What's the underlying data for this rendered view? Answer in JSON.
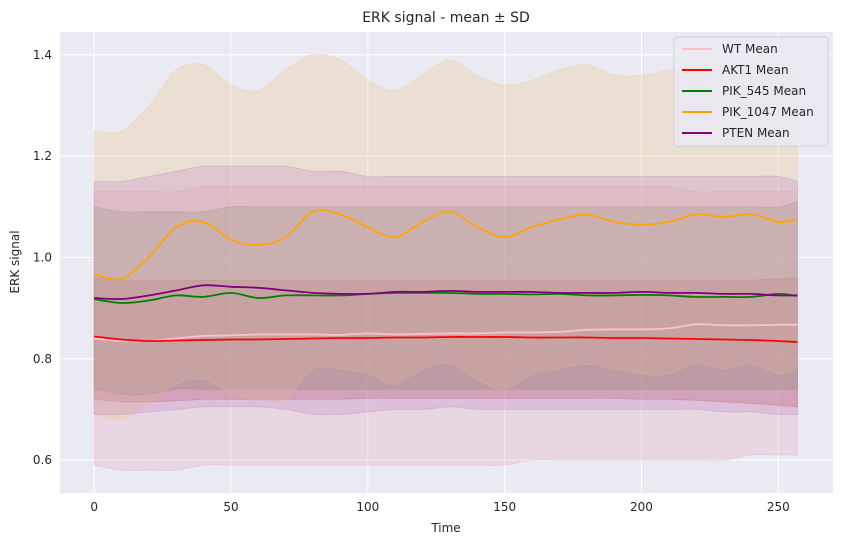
{
  "chart_data": {
    "type": "line",
    "title": "ERK signal - mean ± SD",
    "xlabel": "Time",
    "ylabel": "ERK signal",
    "xlim": [
      -12.5,
      270
    ],
    "ylim": [
      0.535,
      1.445
    ],
    "x_ticks": [
      0,
      50,
      100,
      150,
      200,
      250
    ],
    "y_ticks": [
      0.6,
      0.8,
      1.0,
      1.2,
      1.4
    ],
    "x_tick_labels": [
      "0",
      "50",
      "100",
      "150",
      "200",
      "250"
    ],
    "y_tick_labels": [
      "0.6",
      "0.8",
      "1.0",
      "1.2",
      "1.4"
    ],
    "grid": true,
    "legend_position": "top-right",
    "band": "mean ± SD",
    "x": [
      0,
      10,
      20,
      30,
      40,
      50,
      60,
      70,
      80,
      90,
      100,
      110,
      120,
      130,
      140,
      150,
      160,
      170,
      180,
      190,
      200,
      210,
      220,
      230,
      240,
      250,
      257
    ],
    "series": [
      {
        "name": "WT Mean",
        "color": "#ffc0cb",
        "band_color": "#e6a8c0",
        "mean": [
          0.84,
          0.835,
          0.835,
          0.84,
          0.845,
          0.846,
          0.848,
          0.848,
          0.848,
          0.847,
          0.85,
          0.848,
          0.849,
          0.85,
          0.85,
          0.852,
          0.852,
          0.853,
          0.857,
          0.858,
          0.858,
          0.86,
          0.868,
          0.866,
          0.866,
          0.867,
          0.867
        ],
        "upper": [
          1.13,
          1.13,
          1.13,
          1.13,
          1.14,
          1.14,
          1.14,
          1.14,
          1.14,
          1.14,
          1.14,
          1.14,
          1.14,
          1.14,
          1.14,
          1.14,
          1.14,
          1.14,
          1.14,
          1.14,
          1.14,
          1.14,
          1.13,
          1.13,
          1.13,
          1.13,
          1.13
        ],
        "lower": [
          0.59,
          0.58,
          0.58,
          0.58,
          0.59,
          0.59,
          0.59,
          0.59,
          0.59,
          0.59,
          0.59,
          0.59,
          0.59,
          0.59,
          0.59,
          0.59,
          0.6,
          0.6,
          0.6,
          0.6,
          0.6,
          0.6,
          0.6,
          0.6,
          0.61,
          0.61,
          0.61
        ]
      },
      {
        "name": "AKT1 Mean",
        "color": "#ff0000",
        "band_color": "#c0504d",
        "mean": [
          0.844,
          0.838,
          0.835,
          0.836,
          0.837,
          0.838,
          0.838,
          0.839,
          0.84,
          0.841,
          0.841,
          0.842,
          0.842,
          0.843,
          0.843,
          0.843,
          0.842,
          0.842,
          0.842,
          0.841,
          0.841,
          0.84,
          0.839,
          0.838,
          0.837,
          0.835,
          0.833
        ],
        "upper": [
          0.96,
          0.955,
          0.955,
          0.955,
          0.955,
          0.955,
          0.955,
          0.955,
          0.955,
          0.955,
          0.955,
          0.955,
          0.955,
          0.955,
          0.955,
          0.955,
          0.955,
          0.955,
          0.955,
          0.955,
          0.955,
          0.955,
          0.955,
          0.955,
          0.955,
          0.958,
          0.96
        ],
        "lower": [
          0.72,
          0.715,
          0.715,
          0.717,
          0.72,
          0.72,
          0.72,
          0.72,
          0.72,
          0.72,
          0.722,
          0.722,
          0.722,
          0.722,
          0.722,
          0.722,
          0.722,
          0.722,
          0.722,
          0.722,
          0.72,
          0.72,
          0.718,
          0.715,
          0.712,
          0.708,
          0.705
        ]
      },
      {
        "name": "PIK_545 Mean",
        "color": "#008000",
        "band_color": "#6e8b5a",
        "mean": [
          0.918,
          0.91,
          0.915,
          0.925,
          0.922,
          0.93,
          0.92,
          0.925,
          0.925,
          0.925,
          0.928,
          0.93,
          0.93,
          0.93,
          0.928,
          0.928,
          0.927,
          0.928,
          0.925,
          0.925,
          0.926,
          0.925,
          0.922,
          0.922,
          0.922,
          0.928,
          0.924
        ],
        "upper": [
          1.1,
          1.09,
          1.09,
          1.09,
          1.09,
          1.1,
          1.1,
          1.1,
          1.1,
          1.1,
          1.1,
          1.1,
          1.1,
          1.1,
          1.1,
          1.1,
          1.1,
          1.1,
          1.1,
          1.1,
          1.1,
          1.1,
          1.1,
          1.1,
          1.1,
          1.1,
          1.11
        ],
        "lower": [
          0.74,
          0.73,
          0.73,
          0.74,
          0.74,
          0.74,
          0.74,
          0.74,
          0.74,
          0.74,
          0.74,
          0.74,
          0.74,
          0.74,
          0.74,
          0.74,
          0.74,
          0.74,
          0.74,
          0.74,
          0.74,
          0.74,
          0.74,
          0.74,
          0.74,
          0.74,
          0.74
        ]
      },
      {
        "name": "PIK_1047 Mean",
        "color": "#ffa500",
        "band_color": "#f0c890",
        "mean": [
          0.967,
          0.958,
          1.0,
          1.06,
          1.07,
          1.035,
          1.025,
          1.04,
          1.09,
          1.085,
          1.06,
          1.04,
          1.07,
          1.09,
          1.06,
          1.04,
          1.06,
          1.075,
          1.085,
          1.07,
          1.065,
          1.07,
          1.085,
          1.08,
          1.085,
          1.07,
          1.075
        ],
        "upper": [
          1.25,
          1.25,
          1.3,
          1.37,
          1.38,
          1.34,
          1.33,
          1.37,
          1.4,
          1.39,
          1.35,
          1.33,
          1.36,
          1.39,
          1.36,
          1.34,
          1.35,
          1.37,
          1.38,
          1.36,
          1.36,
          1.37,
          1.38,
          1.38,
          1.38,
          1.37,
          1.37
        ],
        "lower": [
          0.69,
          0.68,
          0.71,
          0.75,
          0.76,
          0.73,
          0.72,
          0.72,
          0.78,
          0.78,
          0.77,
          0.75,
          0.78,
          0.79,
          0.76,
          0.74,
          0.77,
          0.78,
          0.79,
          0.78,
          0.77,
          0.77,
          0.79,
          0.78,
          0.79,
          0.77,
          0.78
        ]
      },
      {
        "name": "PTEN Mean",
        "color": "#800080",
        "band_color": "#c08ac0",
        "mean": [
          0.92,
          0.918,
          0.925,
          0.935,
          0.945,
          0.942,
          0.94,
          0.935,
          0.93,
          0.928,
          0.928,
          0.932,
          0.932,
          0.934,
          0.932,
          0.932,
          0.932,
          0.93,
          0.93,
          0.93,
          0.932,
          0.93,
          0.93,
          0.928,
          0.928,
          0.925,
          0.925
        ],
        "upper": [
          1.15,
          1.15,
          1.16,
          1.17,
          1.18,
          1.18,
          1.18,
          1.18,
          1.17,
          1.17,
          1.16,
          1.16,
          1.16,
          1.16,
          1.16,
          1.16,
          1.16,
          1.16,
          1.16,
          1.16,
          1.16,
          1.16,
          1.16,
          1.16,
          1.16,
          1.16,
          1.15
        ],
        "lower": [
          0.69,
          0.69,
          0.695,
          0.7,
          0.705,
          0.705,
          0.705,
          0.7,
          0.69,
          0.69,
          0.695,
          0.7,
          0.7,
          0.705,
          0.7,
          0.7,
          0.7,
          0.7,
          0.7,
          0.7,
          0.7,
          0.7,
          0.7,
          0.695,
          0.695,
          0.69,
          0.69
        ]
      }
    ]
  }
}
